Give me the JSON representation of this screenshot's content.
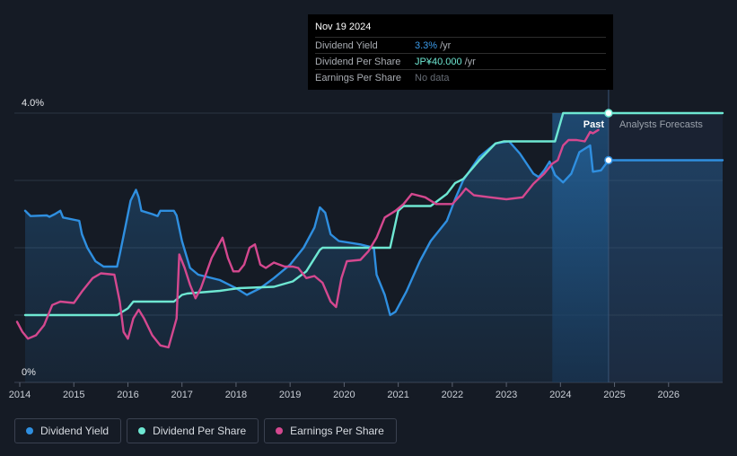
{
  "tooltip": {
    "date": "Nov 19 2024",
    "rows": [
      {
        "label": "Dividend Yield",
        "value": "3.3%",
        "unit": "/yr"
      },
      {
        "label": "Dividend Per Share",
        "value": "JP¥40.000",
        "unit": "/yr"
      },
      {
        "label": "Earnings Per Share",
        "value": "No data",
        "unit": ""
      }
    ]
  },
  "regions": {
    "past": "Past",
    "forecast": "Analysts Forecasts"
  },
  "legend": [
    {
      "label": "Dividend Yield",
      "color": "#2f8fe0"
    },
    {
      "label": "Dividend Per Share",
      "color": "#6ee7d2"
    },
    {
      "label": "Earnings Per Share",
      "color": "#d4488f"
    }
  ],
  "chart_data": {
    "type": "line",
    "title": "",
    "xlabel": "",
    "ylabel": "",
    "x_ticks": [
      "2014",
      "2015",
      "2016",
      "2017",
      "2018",
      "2019",
      "2020",
      "2021",
      "2022",
      "2023",
      "2024",
      "2025",
      "2026"
    ],
    "y_ticks": [
      "0%",
      "4.0%"
    ],
    "xlim": [
      2013.9,
      2027.0
    ],
    "ylim": [
      0,
      4.0
    ],
    "past_end": 2024.89,
    "forecast_band_start": 2023.85,
    "series": [
      {
        "name": "Dividend Yield",
        "color": "#2f8fe0",
        "fill": true,
        "points": [
          [
            2014.1,
            2.55
          ],
          [
            2014.2,
            2.47
          ],
          [
            2014.5,
            2.48
          ],
          [
            2014.55,
            2.46
          ],
          [
            2014.65,
            2.5
          ],
          [
            2014.75,
            2.55
          ],
          [
            2014.8,
            2.45
          ],
          [
            2015.1,
            2.4
          ],
          [
            2015.15,
            2.2
          ],
          [
            2015.25,
            2.0
          ],
          [
            2015.4,
            1.8
          ],
          [
            2015.55,
            1.72
          ],
          [
            2015.8,
            1.72
          ],
          [
            2015.85,
            1.9
          ],
          [
            2015.95,
            2.3
          ],
          [
            2016.05,
            2.7
          ],
          [
            2016.15,
            2.86
          ],
          [
            2016.2,
            2.75
          ],
          [
            2016.25,
            2.55
          ],
          [
            2016.45,
            2.5
          ],
          [
            2016.55,
            2.47
          ],
          [
            2016.6,
            2.55
          ],
          [
            2016.85,
            2.55
          ],
          [
            2016.9,
            2.48
          ],
          [
            2017.0,
            2.1
          ],
          [
            2017.15,
            1.7
          ],
          [
            2017.3,
            1.6
          ],
          [
            2017.7,
            1.52
          ],
          [
            2018.0,
            1.4
          ],
          [
            2018.2,
            1.3
          ],
          [
            2018.45,
            1.4
          ],
          [
            2018.7,
            1.55
          ],
          [
            2019.0,
            1.75
          ],
          [
            2019.25,
            2.0
          ],
          [
            2019.45,
            2.3
          ],
          [
            2019.55,
            2.6
          ],
          [
            2019.65,
            2.52
          ],
          [
            2019.75,
            2.2
          ],
          [
            2019.9,
            2.1
          ],
          [
            2020.3,
            2.05
          ],
          [
            2020.55,
            2.0
          ],
          [
            2020.6,
            1.6
          ],
          [
            2020.75,
            1.3
          ],
          [
            2020.85,
            1.0
          ],
          [
            2020.95,
            1.05
          ],
          [
            2021.15,
            1.35
          ],
          [
            2021.4,
            1.8
          ],
          [
            2021.6,
            2.1
          ],
          [
            2021.9,
            2.4
          ],
          [
            2022.05,
            2.72
          ],
          [
            2022.2,
            3.0
          ],
          [
            2022.5,
            3.35
          ],
          [
            2022.8,
            3.55
          ],
          [
            2023.05,
            3.58
          ],
          [
            2023.25,
            3.4
          ],
          [
            2023.5,
            3.1
          ],
          [
            2023.6,
            3.05
          ],
          [
            2023.7,
            3.15
          ],
          [
            2023.8,
            3.28
          ],
          [
            2023.9,
            3.08
          ],
          [
            2024.05,
            2.97
          ],
          [
            2024.2,
            3.1
          ],
          [
            2024.35,
            3.42
          ],
          [
            2024.55,
            3.52
          ],
          [
            2024.6,
            3.13
          ],
          [
            2024.75,
            3.15
          ],
          [
            2024.89,
            3.3
          ],
          [
            2027.0,
            3.3
          ]
        ]
      },
      {
        "name": "Dividend Per Share",
        "color": "#6ee7d2",
        "fill": false,
        "points": [
          [
            2014.1,
            1.0
          ],
          [
            2015.8,
            1.0
          ],
          [
            2016.0,
            1.1
          ],
          [
            2016.1,
            1.2
          ],
          [
            2016.85,
            1.2
          ],
          [
            2017.0,
            1.3
          ],
          [
            2017.1,
            1.32
          ],
          [
            2017.7,
            1.36
          ],
          [
            2018.05,
            1.4
          ],
          [
            2018.7,
            1.42
          ],
          [
            2019.05,
            1.5
          ],
          [
            2019.3,
            1.65
          ],
          [
            2019.55,
            1.97
          ],
          [
            2019.6,
            2.0
          ],
          [
            2020.85,
            2.0
          ],
          [
            2021.0,
            2.55
          ],
          [
            2021.1,
            2.62
          ],
          [
            2021.6,
            2.62
          ],
          [
            2021.9,
            2.8
          ],
          [
            2022.05,
            2.96
          ],
          [
            2022.2,
            3.02
          ],
          [
            2022.5,
            3.3
          ],
          [
            2022.8,
            3.55
          ],
          [
            2022.95,
            3.58
          ],
          [
            2023.9,
            3.58
          ],
          [
            2024.05,
            4.0
          ],
          [
            2027.0,
            4.0
          ]
        ]
      },
      {
        "name": "Earnings Per Share",
        "color": "#d4488f",
        "fill": false,
        "points": [
          [
            2013.95,
            0.9
          ],
          [
            2014.05,
            0.75
          ],
          [
            2014.15,
            0.65
          ],
          [
            2014.3,
            0.7
          ],
          [
            2014.45,
            0.85
          ],
          [
            2014.6,
            1.15
          ],
          [
            2014.75,
            1.2
          ],
          [
            2015.0,
            1.18
          ],
          [
            2015.15,
            1.35
          ],
          [
            2015.35,
            1.55
          ],
          [
            2015.5,
            1.62
          ],
          [
            2015.75,
            1.6
          ],
          [
            2015.85,
            1.2
          ],
          [
            2015.92,
            0.75
          ],
          [
            2016.0,
            0.65
          ],
          [
            2016.1,
            0.95
          ],
          [
            2016.2,
            1.08
          ],
          [
            2016.3,
            0.95
          ],
          [
            2016.45,
            0.7
          ],
          [
            2016.6,
            0.55
          ],
          [
            2016.75,
            0.52
          ],
          [
            2016.9,
            0.95
          ],
          [
            2016.95,
            1.9
          ],
          [
            2017.05,
            1.7
          ],
          [
            2017.15,
            1.45
          ],
          [
            2017.25,
            1.25
          ],
          [
            2017.35,
            1.4
          ],
          [
            2017.55,
            1.85
          ],
          [
            2017.75,
            2.15
          ],
          [
            2017.85,
            1.85
          ],
          [
            2017.95,
            1.65
          ],
          [
            2018.05,
            1.65
          ],
          [
            2018.15,
            1.75
          ],
          [
            2018.25,
            2.0
          ],
          [
            2018.35,
            2.05
          ],
          [
            2018.45,
            1.75
          ],
          [
            2018.55,
            1.7
          ],
          [
            2018.7,
            1.78
          ],
          [
            2018.9,
            1.72
          ],
          [
            2019.05,
            1.72
          ],
          [
            2019.15,
            1.7
          ],
          [
            2019.3,
            1.55
          ],
          [
            2019.45,
            1.58
          ],
          [
            2019.6,
            1.48
          ],
          [
            2019.75,
            1.2
          ],
          [
            2019.85,
            1.12
          ],
          [
            2019.95,
            1.55
          ],
          [
            2020.05,
            1.8
          ],
          [
            2020.3,
            1.82
          ],
          [
            2020.45,
            1.95
          ],
          [
            2020.6,
            2.15
          ],
          [
            2020.75,
            2.45
          ],
          [
            2020.95,
            2.55
          ],
          [
            2021.1,
            2.65
          ],
          [
            2021.25,
            2.8
          ],
          [
            2021.5,
            2.75
          ],
          [
            2021.7,
            2.65
          ],
          [
            2022.0,
            2.65
          ],
          [
            2022.15,
            2.78
          ],
          [
            2022.25,
            2.88
          ],
          [
            2022.4,
            2.78
          ],
          [
            2022.7,
            2.75
          ],
          [
            2023.0,
            2.72
          ],
          [
            2023.3,
            2.75
          ],
          [
            2023.5,
            2.95
          ],
          [
            2023.7,
            3.1
          ],
          [
            2023.85,
            3.25
          ],
          [
            2023.95,
            3.3
          ],
          [
            2024.05,
            3.52
          ],
          [
            2024.15,
            3.6
          ],
          [
            2024.3,
            3.6
          ],
          [
            2024.45,
            3.58
          ],
          [
            2024.55,
            3.72
          ],
          [
            2024.6,
            3.7
          ],
          [
            2024.7,
            3.75
          ]
        ]
      }
    ]
  }
}
